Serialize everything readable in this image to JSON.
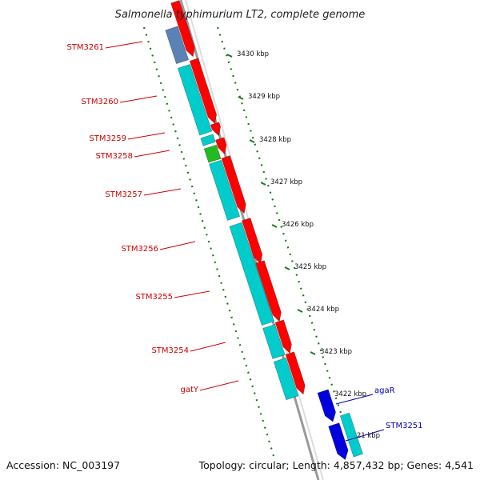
{
  "header": {
    "title": "Salmonella typhimurium LT2, complete genome"
  },
  "footer": {
    "accession": "Accession: NC_003197",
    "topology": "Topology: circular; Length: 4,857,432 bp; Genes: 4,541"
  },
  "colors": {
    "forward_gene": "#ff0000",
    "reverse_gene": "#00cccc",
    "reverse_gene_alt": "#22bb22",
    "reverse_gene_blue": "#0000dd",
    "reverse_gene_steel": "#5a82b4",
    "tick": "#1a7a1a",
    "label_red": "#d00000",
    "label_blue": "#0000aa",
    "backbone": "#888888"
  },
  "scale_ticks": [
    {
      "label": "3430 kbp"
    },
    {
      "label": "3429 kbp"
    },
    {
      "label": "3428 kbp"
    },
    {
      "label": "3427 kbp"
    },
    {
      "label": "3426 kbp"
    },
    {
      "label": "3425 kbp"
    },
    {
      "label": "3424 kbp"
    },
    {
      "label": "3423 kbp"
    },
    {
      "label": "3422 kbp"
    },
    {
      "label": "3421 kbp"
    }
  ],
  "gene_labels_left": [
    {
      "name": "STM3261"
    },
    {
      "name": "STM3260"
    },
    {
      "name": "STM3259"
    },
    {
      "name": "STM3258"
    },
    {
      "name": "STM3257"
    },
    {
      "name": "STM3256"
    },
    {
      "name": "STM3255"
    },
    {
      "name": "STM3254"
    },
    {
      "name": "gatY"
    }
  ],
  "gene_labels_right": [
    {
      "name": "agaR"
    },
    {
      "name": "STM3251"
    }
  ]
}
